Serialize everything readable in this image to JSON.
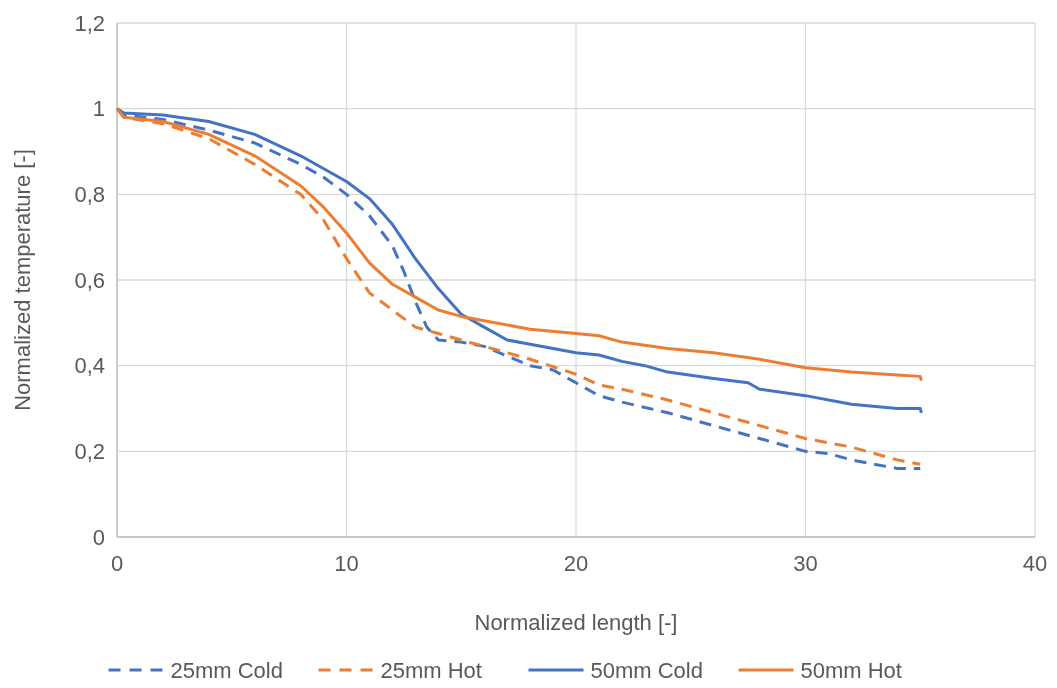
{
  "chart_data": {
    "type": "line",
    "xlabel": "Normalized length [-]",
    "ylabel": "Normalized temperature [-]",
    "xlim": [
      0,
      40
    ],
    "xticks": [
      0,
      10,
      20,
      30,
      40
    ],
    "ylim": [
      0,
      1.2
    ],
    "yticks": [
      0,
      {
        "value": 0.2,
        "label": "0,2"
      },
      {
        "value": 0.4,
        "label": "0,4"
      },
      {
        "value": 0.6,
        "label": "0,6"
      },
      {
        "value": 0.8,
        "label": "0,8"
      },
      1,
      {
        "value": 1.2,
        "label": "1,2"
      }
    ],
    "grid": true,
    "legend": "bottom",
    "series": [
      {
        "name": "25mm Cold",
        "color": "#4472c4",
        "line_style": "dashed",
        "x": [
          0,
          0.3,
          2,
          4,
          6,
          8,
          9,
          10,
          11,
          12,
          12.5,
          13,
          13.5,
          14,
          15,
          16,
          18,
          19,
          20,
          21,
          22,
          24,
          26,
          28,
          30,
          31,
          32,
          34,
          35
        ],
        "values": [
          1,
          0.985,
          0.975,
          0.95,
          0.92,
          0.87,
          0.84,
          0.8,
          0.75,
          0.68,
          0.62,
          0.55,
          0.49,
          0.46,
          0.455,
          0.445,
          0.4,
          0.39,
          0.36,
          0.33,
          0.315,
          0.29,
          0.26,
          0.23,
          0.2,
          0.195,
          0.18,
          0.16,
          0.16
        ]
      },
      {
        "name": "25mm Hot",
        "color": "#ed7d31",
        "line_style": "dashed",
        "x": [
          0,
          0.3,
          2,
          4,
          6,
          8,
          9,
          10,
          11,
          12,
          13,
          14,
          15,
          16,
          18,
          20,
          21,
          22,
          24,
          26,
          28,
          30,
          32,
          34,
          35
        ],
        "values": [
          1,
          0.98,
          0.965,
          0.93,
          0.87,
          0.8,
          0.74,
          0.65,
          0.57,
          0.53,
          0.49,
          0.475,
          0.46,
          0.445,
          0.415,
          0.38,
          0.355,
          0.345,
          0.32,
          0.29,
          0.26,
          0.23,
          0.21,
          0.18,
          0.17
        ]
      },
      {
        "name": "50mm Cold",
        "color": "#4472c4",
        "line_style": "solid",
        "x": [
          0,
          0.3,
          2,
          4,
          6,
          8,
          10,
          11,
          12,
          13,
          14,
          15,
          16,
          17,
          18,
          20,
          21,
          22,
          23,
          24,
          26,
          27.5,
          28,
          30,
          32,
          34,
          35,
          35.05
        ],
        "values": [
          1,
          0.99,
          0.985,
          0.97,
          0.94,
          0.89,
          0.83,
          0.79,
          0.73,
          0.65,
          0.58,
          0.52,
          0.49,
          0.46,
          0.45,
          0.43,
          0.425,
          0.41,
          0.4,
          0.385,
          0.37,
          0.36,
          0.345,
          0.33,
          0.31,
          0.3,
          0.3,
          0.29
        ]
      },
      {
        "name": "50mm Hot",
        "color": "#ed7d31",
        "line_style": "solid",
        "x": [
          0,
          0.3,
          2,
          4,
          6,
          8,
          9,
          10,
          11,
          12,
          13,
          14,
          15,
          16,
          18,
          20,
          21,
          22,
          24,
          26,
          28,
          30,
          32,
          34,
          35,
          35.05
        ],
        "values": [
          1,
          0.98,
          0.97,
          0.94,
          0.89,
          0.82,
          0.77,
          0.71,
          0.64,
          0.59,
          0.56,
          0.53,
          0.515,
          0.505,
          0.485,
          0.475,
          0.47,
          0.455,
          0.44,
          0.43,
          0.415,
          0.395,
          0.385,
          0.378,
          0.375,
          0.365
        ]
      }
    ]
  }
}
